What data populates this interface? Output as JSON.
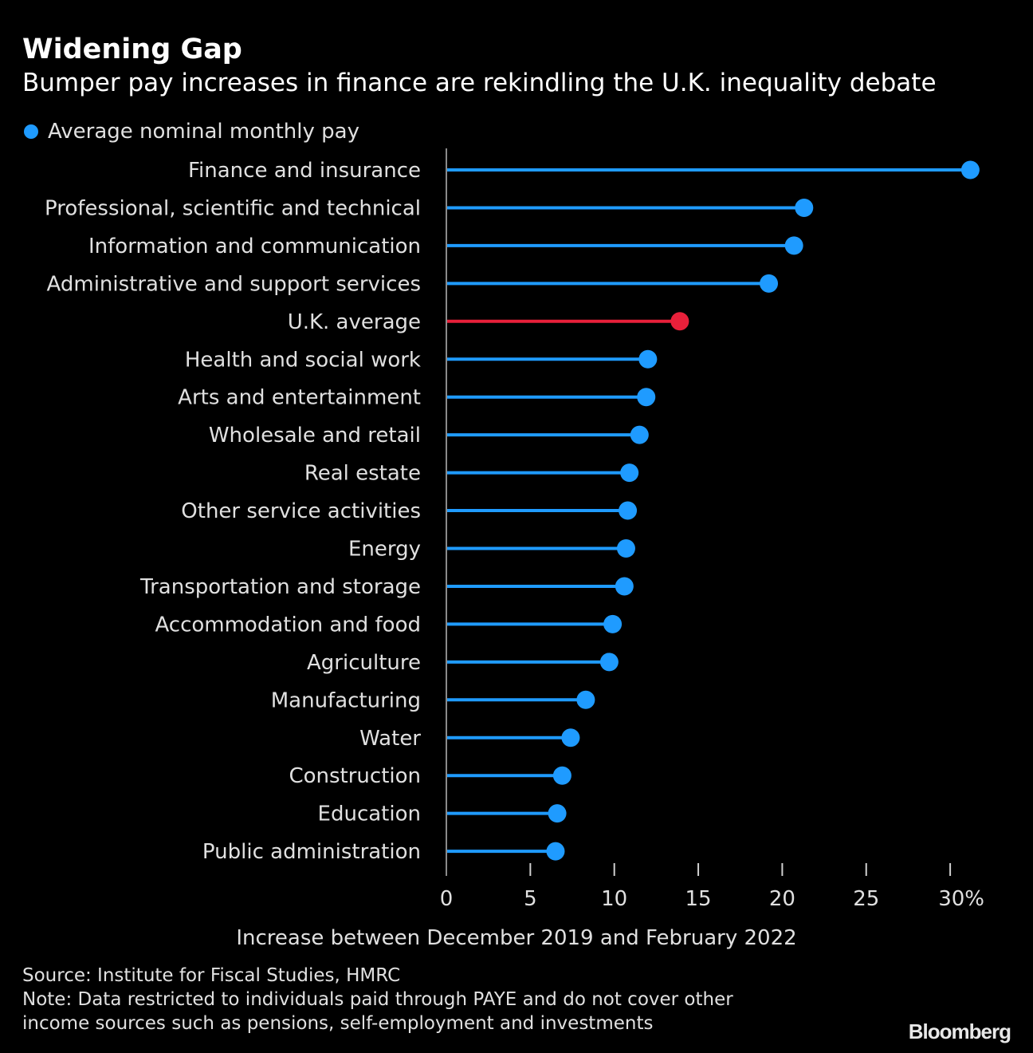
{
  "header": {
    "title": "Widening Gap",
    "subtitle": "Bumper pay increases in finance are rekindling the U.K. inequality debate"
  },
  "legend": {
    "label": "Average nominal monthly pay",
    "color": "#1f9bff"
  },
  "colors": {
    "series": "#1f9bff",
    "highlight": "#e8203a",
    "axis": "#8a8a8a",
    "text": "#e0e0e0"
  },
  "chart_data": {
    "type": "lollipop-bar",
    "orientation": "horizontal",
    "title": "Widening Gap",
    "subtitle": "Bumper pay increases in finance are rekindling the U.K. inequality debate",
    "xlabel": "Increase between December 2019 and February 2022",
    "ylabel": "",
    "xlim": [
      0,
      30
    ],
    "x_ticks": [
      "0",
      "5",
      "10",
      "15",
      "20",
      "25",
      "30%"
    ],
    "x_tick_values": [
      0,
      5,
      10,
      15,
      20,
      25,
      30
    ],
    "grid": false,
    "legend": {
      "entries": [
        "Average nominal monthly pay"
      ],
      "placement": "top-left"
    },
    "highlight_category": "U.K. average",
    "categories": [
      "Finance and insurance",
      "Professional, scientific and technical",
      "Information and communication",
      "Administrative and support services",
      "U.K. average",
      "Health and social work",
      "Arts and entertainment",
      "Wholesale and retail",
      "Real estate",
      "Other service activities",
      "Energy",
      "Transportation and storage",
      "Accommodation and food",
      "Agriculture",
      "Manufacturing",
      "Water",
      "Construction",
      "Education",
      "Public administration"
    ],
    "series": [
      {
        "name": "Average nominal monthly pay",
        "values": [
          31.2,
          21.3,
          20.7,
          19.2,
          13.9,
          12.0,
          11.9,
          11.5,
          10.9,
          10.8,
          10.7,
          10.6,
          9.9,
          9.7,
          8.3,
          7.4,
          6.9,
          6.6,
          6.5
        ]
      }
    ]
  },
  "footer": {
    "source": "Source: Institute for Fiscal Studies, HMRC",
    "note_line1": "Note: Data restricted to individuals paid through PAYE and do not cover other",
    "note_line2": "income sources such as pensions, self-employment and investments",
    "logo": "Bloomberg"
  }
}
